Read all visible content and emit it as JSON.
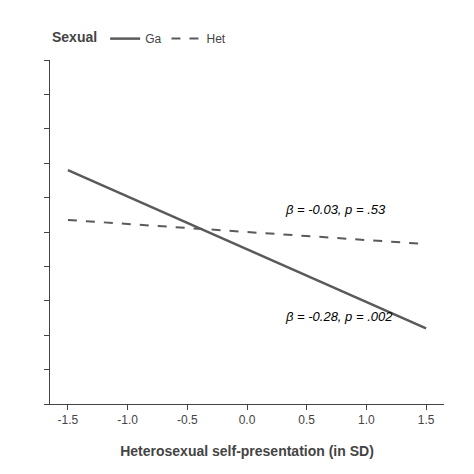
{
  "chart_data": {
    "type": "line",
    "x": [
      -1.5,
      1.5
    ],
    "series": [
      {
        "name": "Ga",
        "color": "#5a5a5a",
        "line_style": "solid",
        "values": [
          0.68,
          0.22
        ]
      },
      {
        "name": "Het",
        "color": "#5a5a5a",
        "line_style": "dashed",
        "values": [
          0.535,
          0.465
        ]
      }
    ],
    "xlabel": "Heterosexual self-presentation (in SD)",
    "legend_title": "Sexual",
    "annotations": [
      {
        "text": "β = -0.03, p = .53",
        "x": 0.3,
        "y": 0.565
      },
      {
        "text": "β = -0.28, p = .002",
        "x": 0.3,
        "y": 0.255
      }
    ],
    "xlim": [
      -1.65,
      1.65
    ],
    "xticks": [
      -1.5,
      {
        "value": -1.0,
        "label": "-1.0"
      },
      -0.5,
      {
        "value": 0.0,
        "label": "0.0"
      },
      0.5,
      {
        "value": 1.0,
        "label": "1.0"
      },
      1.5
    ],
    "ylim": [
      0.0,
      1.0
    ],
    "yticks": [
      0.0,
      0.1,
      0.2,
      0.3,
      0.4,
      0.5,
      0.6,
      0.7,
      0.8,
      0.9,
      1.0
    ],
    "tick_labels": "x",
    "grid": false
  }
}
